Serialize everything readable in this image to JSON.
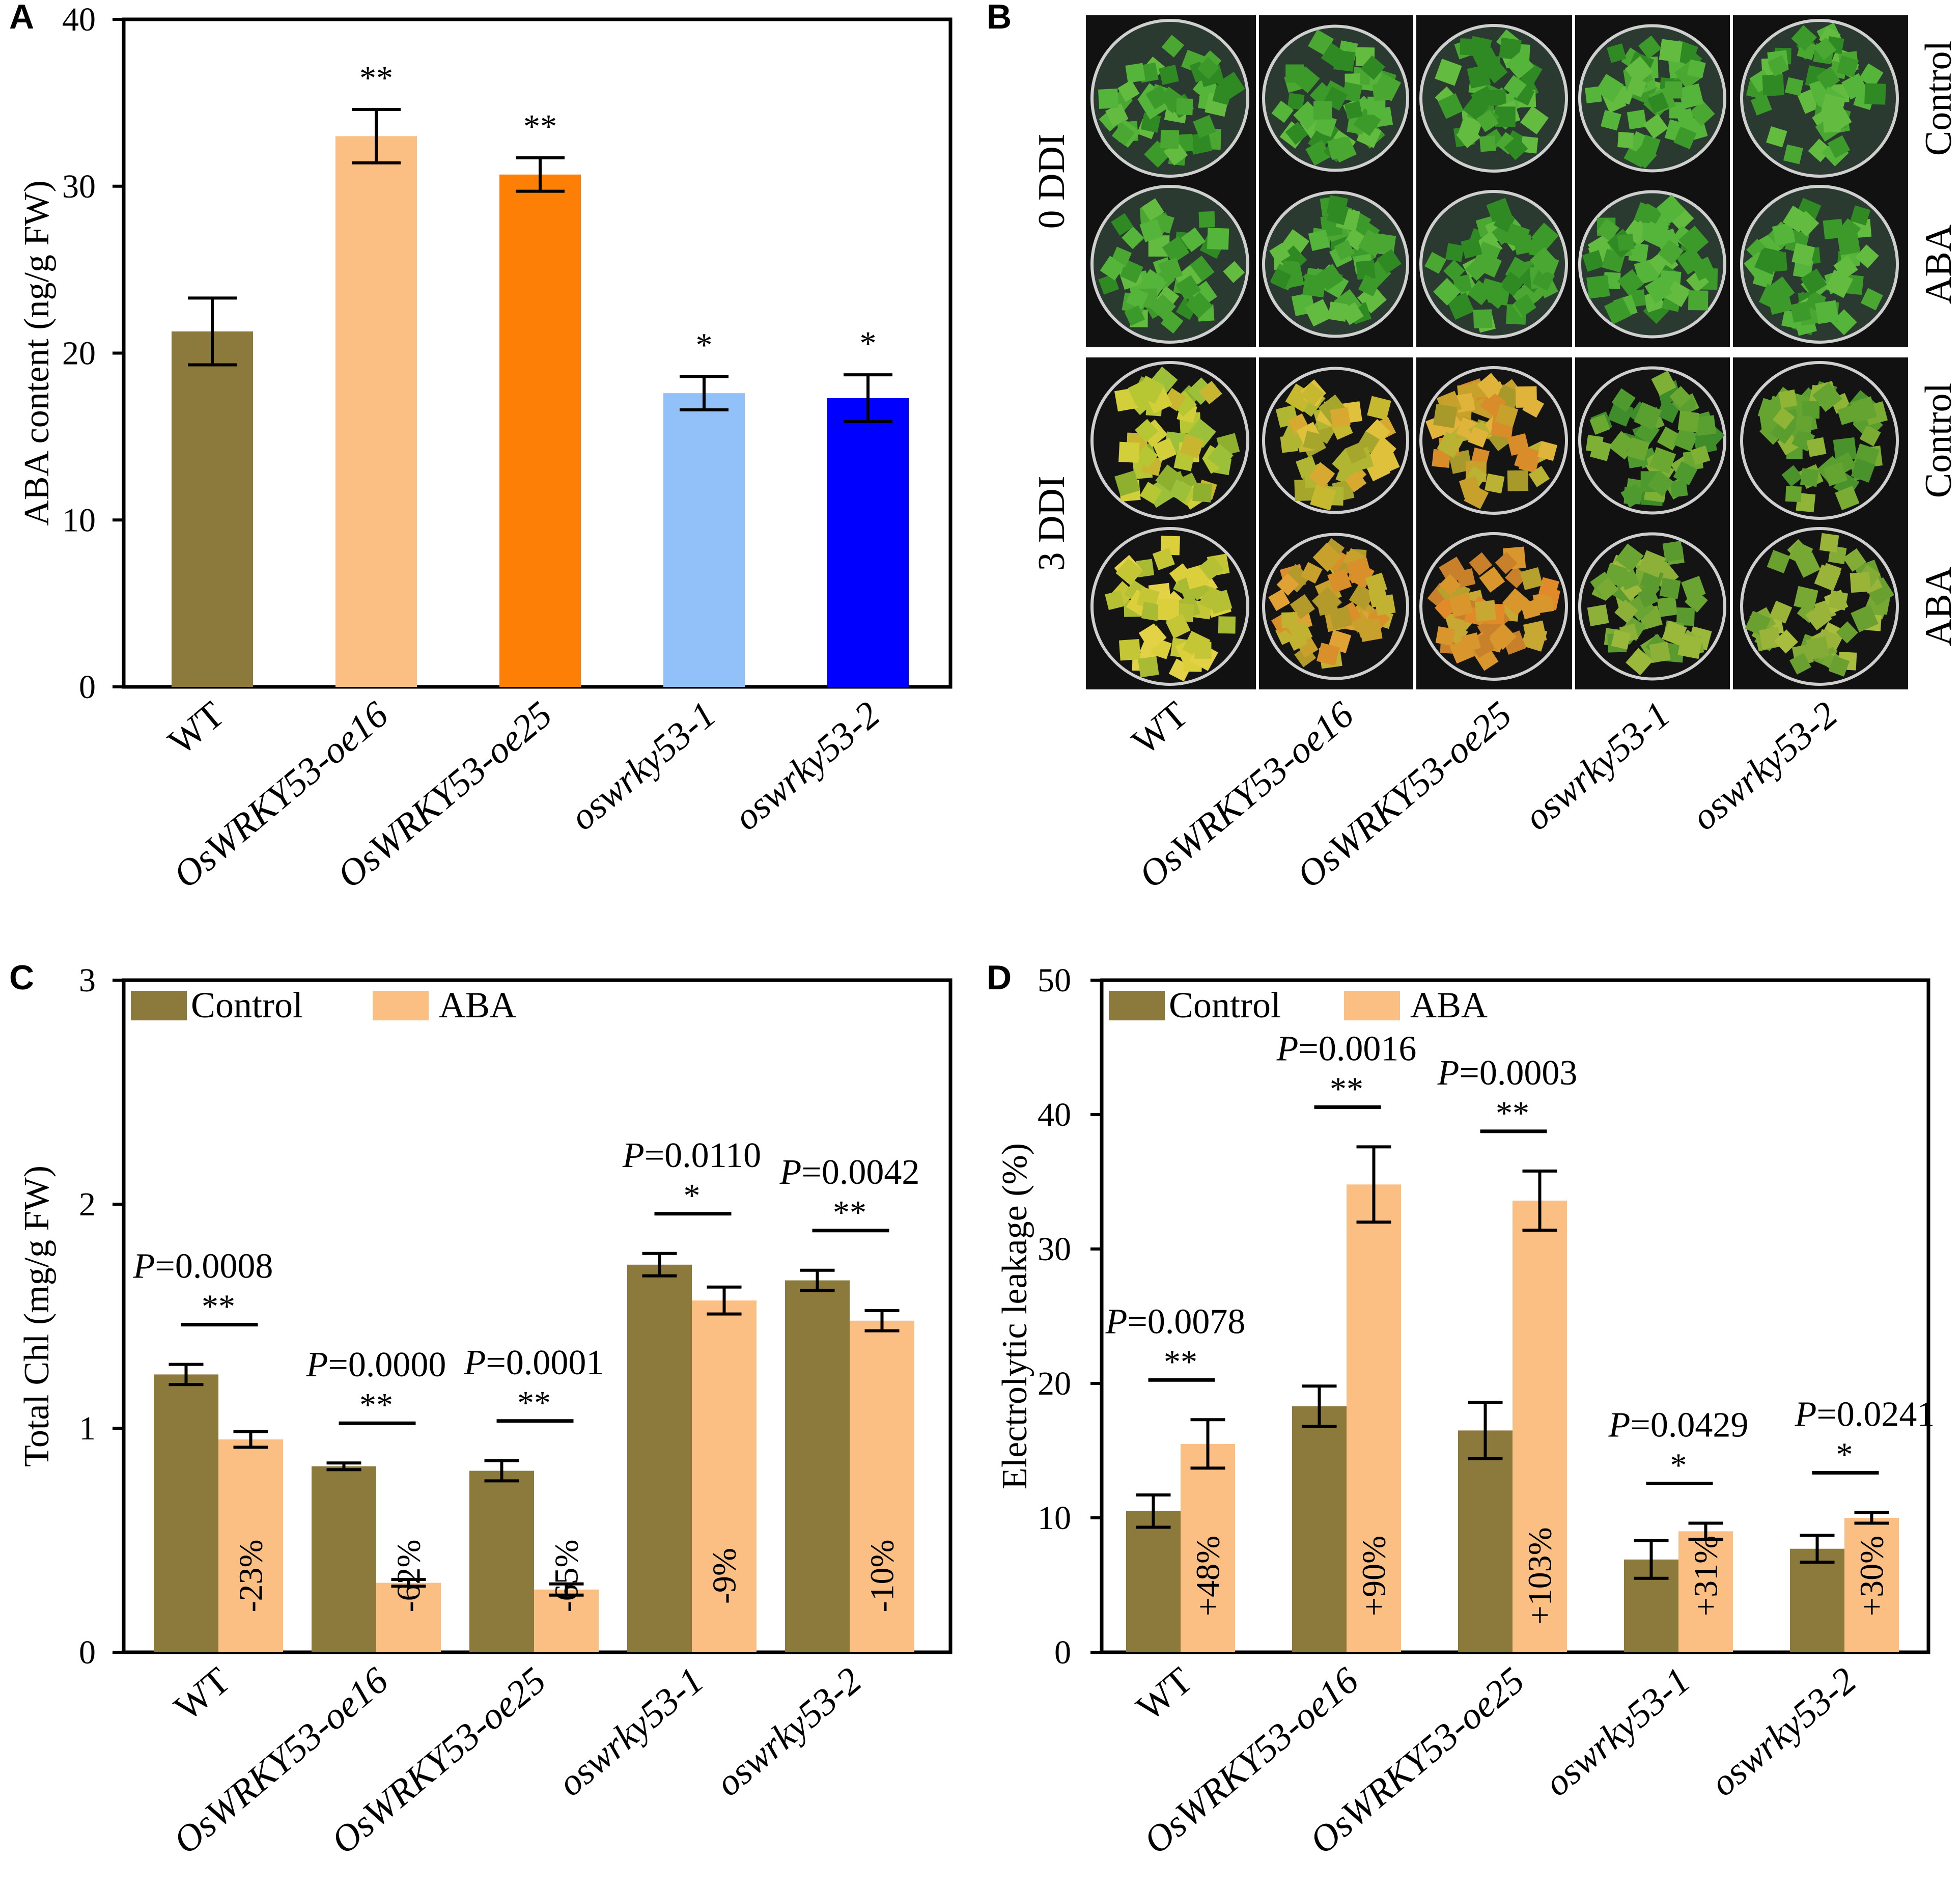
{
  "panels": {
    "A": {
      "label": "A"
    },
    "B": {
      "label": "B",
      "row_labels": [
        "0 DDI",
        "3 DDI"
      ],
      "treatment_labels": [
        "Control",
        "ABA",
        "Control",
        "ABA"
      ],
      "categories": [
        {
          "text": "WT",
          "italic": false
        },
        {
          "text": "OsWRKY53-oe16",
          "italic": true
        },
        {
          "text": "OsWRKY53-oe25",
          "italic": true
        },
        {
          "text": "oswrky53-1",
          "italic": true
        },
        {
          "text": "oswrky53-2",
          "italic": true
        }
      ]
    },
    "C": {
      "label": "C"
    },
    "D": {
      "label": "D"
    }
  },
  "colors": {
    "wt": "#8b7a3c",
    "oe16": "#fbbf84",
    "oe25": "#fd7f05",
    "ko1": "#92c0f8",
    "ko2": "#0000ff",
    "control": "#8b7a3c",
    "aba": "#fbbf84"
  },
  "chart_data": [
    {
      "id": "A",
      "type": "bar",
      "categories": [
        "WT",
        "OsWRKY53-oe16",
        "OsWRKY53-oe25",
        "oswrky53-1",
        "oswrky53-2"
      ],
      "category_italic": [
        false,
        true,
        true,
        true,
        true
      ],
      "values": [
        21.3,
        33.0,
        30.7,
        17.6,
        17.3
      ],
      "errors": [
        2.0,
        1.6,
        1.0,
        1.0,
        1.4
      ],
      "significance": [
        "",
        "**",
        "**",
        "*",
        "*"
      ],
      "ylabel": "ABA content (ng/g FW)",
      "ylim": [
        0,
        40
      ],
      "yticks": [
        0,
        10,
        20,
        30,
        40
      ]
    },
    {
      "id": "C",
      "type": "bar",
      "categories": [
        "WT",
        "OsWRKY53-oe16",
        "OsWRKY53-oe25",
        "oswrky53-1",
        "oswrky53-2"
      ],
      "category_italic": [
        false,
        true,
        true,
        true,
        true
      ],
      "legend": [
        "Control",
        "ABA"
      ],
      "series": [
        {
          "name": "Control",
          "values": [
            1.24,
            0.83,
            0.81,
            1.73,
            1.66
          ],
          "errors": [
            0.045,
            0.015,
            0.045,
            0.05,
            0.045
          ]
        },
        {
          "name": "ABA",
          "values": [
            0.95,
            0.31,
            0.28,
            1.57,
            1.48
          ],
          "errors": [
            0.035,
            0.015,
            0.025,
            0.06,
            0.045
          ]
        }
      ],
      "p_values": [
        "0.0008",
        "0.0000",
        "0.0001",
        "0.0110",
        "0.0042"
      ],
      "significance": [
        "**",
        "**",
        "**",
        "*",
        "**"
      ],
      "percent_change": [
        "-23%",
        "-62%",
        "-65%",
        "-9%",
        "-10%"
      ],
      "ylabel": "Total Chl (mg/g FW)",
      "ylim": [
        0,
        3
      ],
      "yticks": [
        0,
        1,
        2,
        3
      ]
    },
    {
      "id": "D",
      "type": "bar",
      "categories": [
        "WT",
        "OsWRKY53-oe16",
        "OsWRKY53-oe25",
        "oswrky53-1",
        "oswrky53-2"
      ],
      "category_italic": [
        false,
        true,
        true,
        true,
        true
      ],
      "legend": [
        "Control",
        "ABA"
      ],
      "series": [
        {
          "name": "Control",
          "values": [
            10.5,
            18.3,
            16.5,
            6.9,
            7.7
          ],
          "errors": [
            1.2,
            1.5,
            2.1,
            1.4,
            1.0
          ]
        },
        {
          "name": "ABA",
          "values": [
            15.5,
            34.8,
            33.6,
            9.0,
            10.0
          ],
          "errors": [
            1.8,
            2.8,
            2.2,
            0.6,
            0.4
          ]
        }
      ],
      "p_values": [
        "0.0078",
        "0.0016",
        "0.0003",
        "0.0429",
        "0.0241"
      ],
      "significance": [
        "**",
        "**",
        "**",
        "*",
        "*"
      ],
      "percent_change": [
        "+48%",
        "+90%",
        "+103%",
        "+31%",
        "+30%"
      ],
      "ylabel": "Electrolytic leakage (%)",
      "ylim": [
        0,
        50
      ],
      "yticks": [
        0,
        10,
        20,
        30,
        40,
        50
      ]
    }
  ]
}
